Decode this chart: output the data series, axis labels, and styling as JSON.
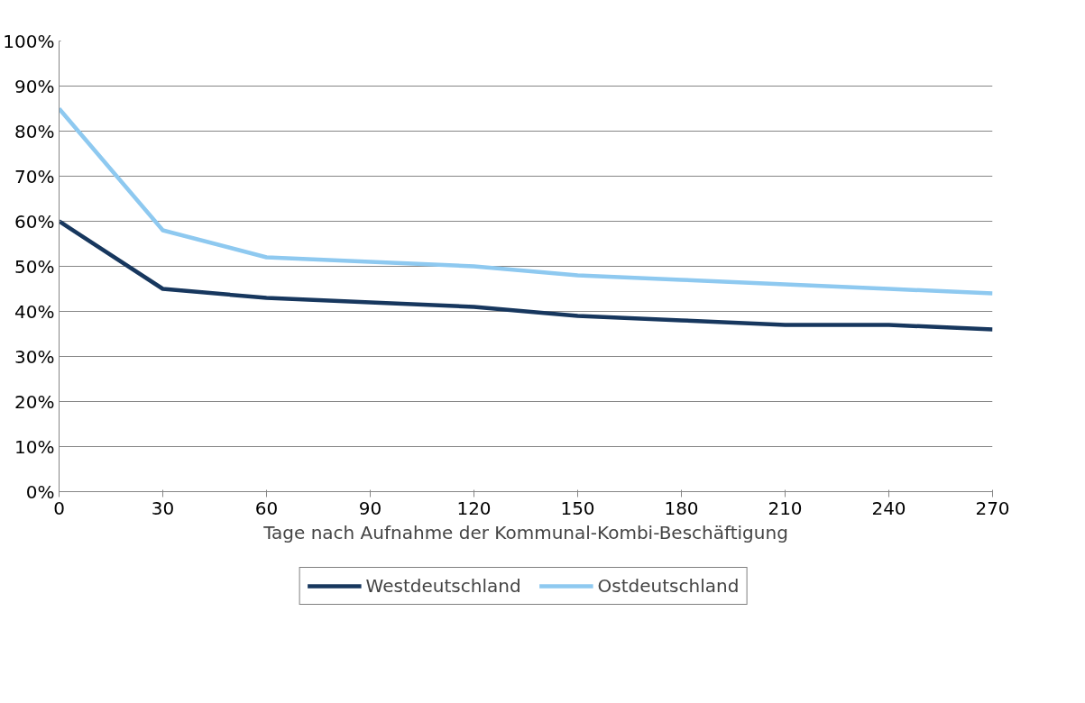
{
  "chart_data": {
    "type": "line",
    "xlabel": "Tage nach Aufnahme der Kommunal-Kombi-Beschäftigung",
    "x": [
      0,
      30,
      60,
      90,
      120,
      150,
      180,
      210,
      240,
      270
    ],
    "series": [
      {
        "name": "Westdeutschland",
        "color": "#17375e",
        "values": [
          60,
          45,
          43,
          42,
          41,
          39,
          38,
          37,
          37,
          36
        ]
      },
      {
        "name": "Ostdeutschland",
        "color": "#8ec9f0",
        "values": [
          85,
          58,
          52,
          51,
          50,
          48,
          47,
          46,
          45,
          44
        ]
      }
    ],
    "xlim": [
      0,
      270
    ],
    "xticks": [
      0,
      30,
      60,
      90,
      120,
      150,
      180,
      210,
      240,
      270
    ],
    "ylim": [
      0,
      100
    ],
    "yticks": [
      {
        "value": 0,
        "label": "0%"
      },
      {
        "value": 10,
        "label": "10%"
      },
      {
        "value": 20,
        "label": "20%"
      },
      {
        "value": 30,
        "label": "30%"
      },
      {
        "value": 40,
        "label": "40%"
      },
      {
        "value": 50,
        "label": "50%"
      },
      {
        "value": 60,
        "label": "60%"
      },
      {
        "value": 70,
        "label": "70%"
      },
      {
        "value": 80,
        "label": "80%"
      },
      {
        "value": 90,
        "label": "90%"
      },
      {
        "value": 100,
        "label": "100%"
      }
    ],
    "grid": "y",
    "legend": "bottom",
    "marker": "none",
    "line_style": "solid"
  }
}
